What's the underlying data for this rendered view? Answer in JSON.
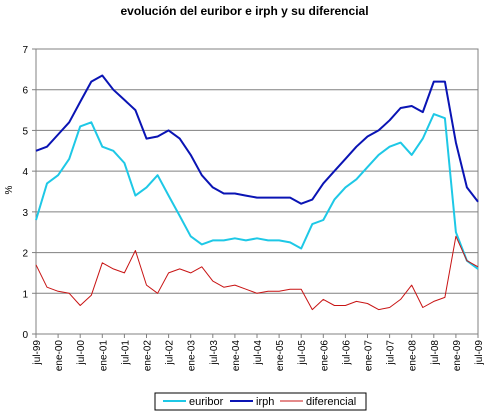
{
  "chart_data": {
    "type": "line",
    "title": "evolución del euribor e irph y su diferencial",
    "xlabel": "",
    "ylabel": "%",
    "ylim": [
      0,
      7
    ],
    "yticks": [
      0,
      1,
      2,
      3,
      4,
      5,
      6,
      7
    ],
    "grid": true,
    "legend_position": "bottom",
    "x": [
      "jul-99",
      "oct-99",
      "ene-00",
      "abr-00",
      "jul-00",
      "oct-00",
      "ene-01",
      "abr-01",
      "jul-01",
      "oct-01",
      "ene-02",
      "abr-02",
      "jul-02",
      "oct-02",
      "ene-03",
      "abr-03",
      "jul-03",
      "oct-03",
      "ene-04",
      "abr-04",
      "jul-04",
      "oct-04",
      "ene-05",
      "abr-05",
      "jul-05",
      "oct-05",
      "ene-06",
      "abr-06",
      "jul-06",
      "oct-06",
      "ene-07",
      "abr-07",
      "jul-07",
      "oct-07",
      "ene-08",
      "abr-08",
      "jul-08",
      "oct-08",
      "ene-09",
      "abr-09",
      "jul-09"
    ],
    "x_tick_labels": [
      "jul-99",
      "ene-00",
      "jul-00",
      "ene-01",
      "jul-01",
      "ene-02",
      "jul-02",
      "ene-03",
      "jul-03",
      "ene-04",
      "jul-04",
      "ene-05",
      "jul-05",
      "ene-06",
      "jul-06",
      "ene-07",
      "jul-07",
      "ene-08",
      "jul-08",
      "ene-09",
      "jul-09"
    ],
    "series": [
      {
        "name": "euribor",
        "color": "#1EC8E6",
        "values": [
          2.8,
          3.7,
          3.9,
          4.3,
          5.1,
          5.2,
          4.6,
          4.5,
          4.2,
          3.4,
          3.6,
          3.9,
          3.4,
          2.9,
          2.4,
          2.2,
          2.3,
          2.3,
          2.35,
          2.3,
          2.35,
          2.3,
          2.3,
          2.25,
          2.1,
          2.7,
          2.8,
          3.3,
          3.6,
          3.8,
          4.1,
          4.4,
          4.6,
          4.7,
          4.4,
          4.8,
          5.4,
          5.3,
          2.5,
          1.8,
          1.6
        ]
      },
      {
        "name": "irph",
        "color": "#0A14B4",
        "values": [
          4.5,
          4.6,
          4.9,
          5.2,
          5.7,
          6.2,
          6.35,
          6.0,
          5.75,
          5.5,
          4.8,
          4.85,
          5.0,
          4.8,
          4.4,
          3.9,
          3.6,
          3.45,
          3.45,
          3.4,
          3.35,
          3.35,
          3.35,
          3.35,
          3.2,
          3.3,
          3.7,
          4.0,
          4.3,
          4.6,
          4.85,
          5.0,
          5.25,
          5.55,
          5.6,
          5.45,
          6.2,
          6.2,
          4.7,
          3.6,
          3.25
        ]
      },
      {
        "name": "diferencial",
        "color": "#C81414",
        "values": [
          1.7,
          1.15,
          1.05,
          1.0,
          0.7,
          0.95,
          1.75,
          1.6,
          1.5,
          2.05,
          1.2,
          1.0,
          1.5,
          1.6,
          1.5,
          1.65,
          1.3,
          1.15,
          1.2,
          1.1,
          1.0,
          1.05,
          1.05,
          1.1,
          1.1,
          0.6,
          0.85,
          0.7,
          0.7,
          0.8,
          0.75,
          0.6,
          0.65,
          0.85,
          1.2,
          0.65,
          0.8,
          0.9,
          2.4,
          1.8,
          1.65
        ]
      }
    ]
  }
}
